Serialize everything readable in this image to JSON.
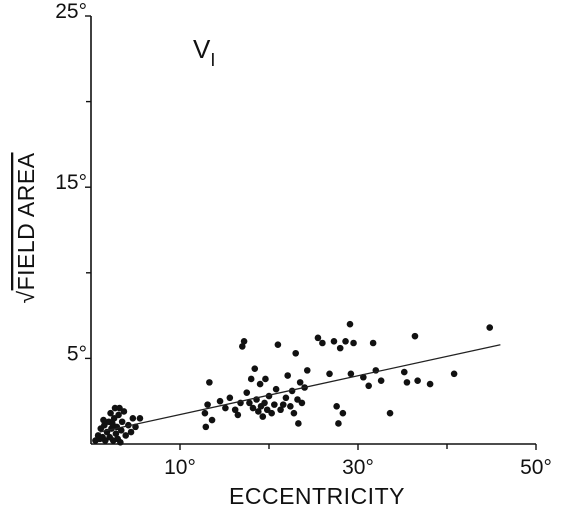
{
  "chart_data": {
    "type": "scatter",
    "title": "",
    "panel_label": "V",
    "panel_subscript": "I",
    "xlabel": "ECCENTRICITY",
    "ylabel": "FIELD AREA",
    "ylabel_prefix": "√",
    "xlim": [
      0,
      50
    ],
    "ylim": [
      0,
      25
    ],
    "x_ticks": [
      {
        "value": 10,
        "label": "10°"
      },
      {
        "value": 30,
        "label": "30°"
      },
      {
        "value": 50,
        "label": "50°"
      }
    ],
    "x_minor_ticks": [
      20,
      40
    ],
    "y_ticks": [
      {
        "value": 5,
        "label": "5°"
      },
      {
        "value": 15,
        "label": "15°"
      },
      {
        "value": 25,
        "label": "25°"
      }
    ],
    "y_minor_ticks": [
      10,
      20
    ],
    "grid": false,
    "fit_line": {
      "x": [
        1,
        46
      ],
      "y": [
        0.7,
        5.8
      ]
    },
    "series": [
      {
        "points": [
          [
            0.5,
            0.2
          ],
          [
            0.8,
            0.5
          ],
          [
            1.0,
            0.3
          ],
          [
            1.1,
            0.9
          ],
          [
            1.3,
            0.4
          ],
          [
            1.5,
            1.1
          ],
          [
            1.6,
            0.2
          ],
          [
            1.8,
            0.7
          ],
          [
            2.0,
            1.3
          ],
          [
            2.1,
            0.4
          ],
          [
            2.2,
            1.8
          ],
          [
            2.3,
            0.9
          ],
          [
            2.5,
            0.2
          ],
          [
            2.6,
            1.5
          ],
          [
            2.7,
            2.1
          ],
          [
            2.8,
            0.6
          ],
          [
            2.9,
            1.0
          ],
          [
            3.0,
            0.3
          ],
          [
            3.1,
            1.7
          ],
          [
            3.2,
            2.1
          ],
          [
            3.4,
            0.8
          ],
          [
            3.5,
            1.3
          ],
          [
            3.7,
            1.9
          ],
          [
            3.9,
            0.5
          ],
          [
            4.2,
            1.1
          ],
          [
            4.5,
            0.7
          ],
          [
            4.7,
            1.5
          ],
          [
            5.0,
            1.0
          ],
          [
            5.5,
            1.5
          ],
          [
            1.4,
            1.4
          ],
          [
            2.4,
            1.2
          ],
          [
            3.3,
            0.1
          ],
          [
            12.8,
            1.8
          ],
          [
            12.9,
            1.0
          ],
          [
            13.1,
            2.3
          ],
          [
            13.3,
            3.6
          ],
          [
            13.6,
            1.4
          ],
          [
            14.5,
            2.5
          ],
          [
            15.1,
            2.1
          ],
          [
            15.6,
            2.7
          ],
          [
            16.2,
            2.0
          ],
          [
            16.5,
            1.7
          ],
          [
            16.8,
            2.4
          ],
          [
            17.0,
            5.7
          ],
          [
            17.2,
            6.0
          ],
          [
            17.5,
            3.0
          ],
          [
            17.8,
            2.4
          ],
          [
            18.0,
            3.8
          ],
          [
            18.2,
            2.1
          ],
          [
            18.4,
            4.4
          ],
          [
            18.6,
            2.6
          ],
          [
            18.8,
            1.9
          ],
          [
            19.0,
            3.5
          ],
          [
            19.1,
            2.2
          ],
          [
            19.3,
            1.6
          ],
          [
            19.5,
            2.4
          ],
          [
            19.6,
            3.8
          ],
          [
            19.8,
            2.0
          ],
          [
            20.0,
            2.8
          ],
          [
            20.3,
            1.8
          ],
          [
            20.6,
            2.3
          ],
          [
            20.8,
            3.2
          ],
          [
            21.0,
            5.8
          ],
          [
            21.3,
            2.0
          ],
          [
            21.6,
            2.3
          ],
          [
            21.9,
            2.7
          ],
          [
            22.1,
            4.0
          ],
          [
            22.4,
            2.2
          ],
          [
            22.6,
            3.1
          ],
          [
            22.8,
            1.8
          ],
          [
            23.0,
            5.3
          ],
          [
            23.2,
            2.6
          ],
          [
            23.3,
            1.2
          ],
          [
            23.5,
            3.6
          ],
          [
            23.7,
            2.4
          ],
          [
            24.0,
            3.3
          ],
          [
            24.3,
            4.3
          ],
          [
            25.5,
            6.2
          ],
          [
            26.0,
            5.9
          ],
          [
            26.8,
            4.1
          ],
          [
            27.3,
            6.0
          ],
          [
            27.6,
            2.2
          ],
          [
            27.8,
            1.2
          ],
          [
            28.0,
            5.6
          ],
          [
            28.3,
            1.8
          ],
          [
            28.6,
            6.0
          ],
          [
            29.1,
            7.0
          ],
          [
            29.2,
            4.1
          ],
          [
            29.5,
            5.9
          ],
          [
            30.6,
            3.9
          ],
          [
            31.2,
            3.4
          ],
          [
            31.7,
            5.9
          ],
          [
            32.0,
            4.3
          ],
          [
            32.6,
            3.7
          ],
          [
            33.6,
            1.8
          ],
          [
            35.2,
            4.2
          ],
          [
            35.5,
            3.6
          ],
          [
            36.4,
            6.3
          ],
          [
            36.7,
            3.7
          ],
          [
            38.1,
            3.5
          ],
          [
            40.8,
            4.1
          ],
          [
            44.8,
            6.8
          ]
        ]
      }
    ]
  }
}
